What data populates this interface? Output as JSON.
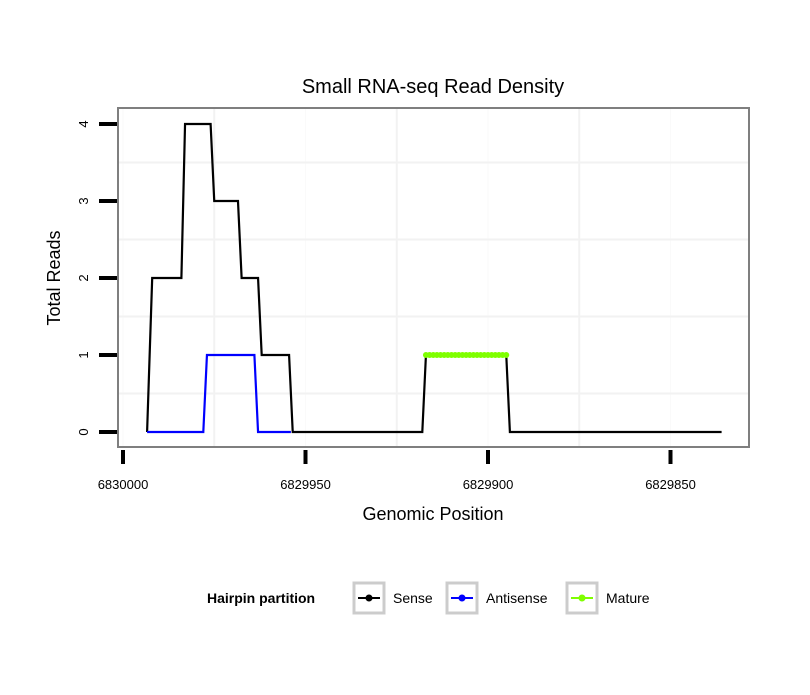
{
  "chart_data": {
    "type": "line",
    "title": "Small RNA-seq Read Density",
    "xlabel": "Genomic Position",
    "ylabel": "Total Reads",
    "xlim": [
      6830001.4,
      6829827.5
    ],
    "ylim": [
      -0.2,
      4.2
    ],
    "x_reversed": true,
    "xticks": [
      6830000,
      6829950,
      6829900,
      6829850
    ],
    "xtick_labels": [
      "6830000",
      "6829950",
      "6829900",
      "6829850"
    ],
    "yticks": [
      0,
      1,
      2,
      3,
      4
    ],
    "ytick_labels": [
      "0",
      "1",
      "2",
      "3",
      "4"
    ],
    "grid": true,
    "legend": {
      "title": "Hairpin partition",
      "placement": "bottom"
    },
    "series": [
      {
        "name": "Sense",
        "color": "#000000",
        "style": "line",
        "points": [
          [
            6829993.4,
            0
          ],
          [
            6829992,
            2
          ],
          [
            6829984,
            2
          ],
          [
            6829983,
            4
          ],
          [
            6829976,
            4
          ],
          [
            6829975,
            3
          ],
          [
            6829968.5,
            3
          ],
          [
            6829967.5,
            2
          ],
          [
            6829963,
            2
          ],
          [
            6829962,
            1
          ],
          [
            6829954.5,
            1
          ],
          [
            6829953.5,
            0
          ],
          [
            6829918,
            0
          ],
          [
            6829917,
            1
          ],
          [
            6829895,
            1
          ],
          [
            6829894,
            0
          ],
          [
            6829836,
            0
          ]
        ]
      },
      {
        "name": "Antisense",
        "color": "#0000ff",
        "style": "line",
        "points": [
          [
            6829993.4,
            0
          ],
          [
            6829978,
            0
          ],
          [
            6829977,
            1
          ],
          [
            6829964,
            1
          ],
          [
            6829963,
            0
          ],
          [
            6829954,
            0
          ]
        ]
      },
      {
        "name": "Mature",
        "color": "#7fff00",
        "style": "points",
        "points": [
          [
            6829917,
            1
          ],
          [
            6829916,
            1
          ],
          [
            6829915,
            1
          ],
          [
            6829914,
            1
          ],
          [
            6829913,
            1
          ],
          [
            6829912,
            1
          ],
          [
            6829911,
            1
          ],
          [
            6829910,
            1
          ],
          [
            6829909,
            1
          ],
          [
            6829908,
            1
          ],
          [
            6829907,
            1
          ],
          [
            6829906,
            1
          ],
          [
            6829905,
            1
          ],
          [
            6829904,
            1
          ],
          [
            6829903,
            1
          ],
          [
            6829902,
            1
          ],
          [
            6829901,
            1
          ],
          [
            6829900,
            1
          ],
          [
            6829899,
            1
          ],
          [
            6829898,
            1
          ],
          [
            6829897,
            1
          ],
          [
            6829896,
            1
          ],
          [
            6829895,
            1
          ]
        ]
      }
    ]
  }
}
